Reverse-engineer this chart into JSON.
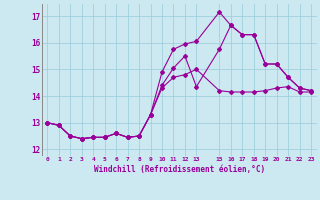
{
  "xlabel": "Windchill (Refroidissement éolien,°C)",
  "background_color": "#cce8f0",
  "grid_color": "#99ccdd",
  "line_color": "#990099",
  "xlim": [
    -0.5,
    23.5
  ],
  "ylim": [
    11.75,
    17.45
  ],
  "yticks": [
    12,
    13,
    14,
    15,
    16,
    17
  ],
  "xtick_positions": [
    0,
    1,
    2,
    3,
    4,
    5,
    6,
    7,
    8,
    9,
    10,
    11,
    12,
    13,
    15,
    16,
    17,
    18,
    19,
    20,
    21,
    22,
    23
  ],
  "xtick_labels": [
    "0",
    "1",
    "2",
    "3",
    "4",
    "5",
    "6",
    "7",
    "8",
    "9",
    "10",
    "11",
    "12",
    "13",
    "15",
    "16",
    "17",
    "18",
    "19",
    "20",
    "21",
    "22",
    "23"
  ],
  "line1_x": [
    0,
    1,
    2,
    3,
    4,
    5,
    6,
    7,
    8,
    9,
    10,
    11,
    12,
    13,
    15,
    16,
    17,
    18,
    19,
    20,
    21,
    22,
    23
  ],
  "line1_y": [
    13.0,
    12.9,
    12.5,
    12.4,
    12.45,
    12.45,
    12.6,
    12.45,
    12.5,
    13.3,
    14.3,
    14.7,
    14.8,
    15.0,
    14.2,
    14.15,
    14.15,
    14.15,
    14.2,
    14.3,
    14.35,
    14.15,
    14.15
  ],
  "line2_x": [
    0,
    1,
    2,
    3,
    4,
    5,
    6,
    7,
    8,
    9,
    10,
    11,
    12,
    13,
    15,
    16,
    17,
    18,
    19,
    20,
    21,
    22,
    23
  ],
  "line2_y": [
    13.0,
    12.9,
    12.5,
    12.4,
    12.45,
    12.45,
    12.6,
    12.45,
    12.5,
    13.3,
    14.9,
    15.75,
    15.95,
    16.05,
    17.15,
    16.65,
    16.3,
    16.3,
    15.2,
    15.2,
    14.7,
    14.3,
    14.2
  ],
  "line3_x": [
    0,
    1,
    2,
    3,
    4,
    5,
    6,
    7,
    8,
    9,
    10,
    11,
    12,
    13,
    15,
    16,
    17,
    18,
    19,
    20,
    21,
    22,
    23
  ],
  "line3_y": [
    13.0,
    12.9,
    12.5,
    12.4,
    12.45,
    12.45,
    12.6,
    12.45,
    12.5,
    13.3,
    14.4,
    15.05,
    15.5,
    14.35,
    15.75,
    16.65,
    16.3,
    16.3,
    15.2,
    15.2,
    14.7,
    14.3,
    14.2
  ]
}
